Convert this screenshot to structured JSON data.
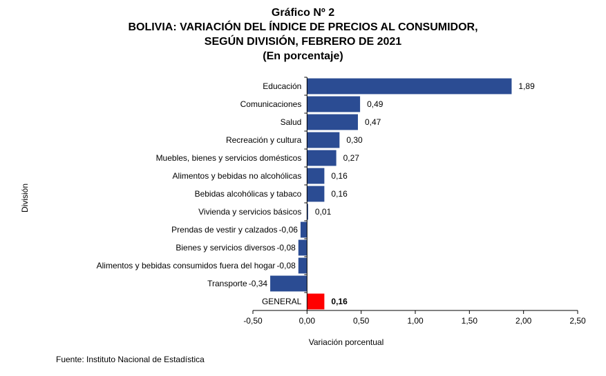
{
  "titles": {
    "line1": "Gráfico Nº 2",
    "line2": "BOLIVIA: VARIACIÓN DEL ÍNDICE DE PRECIOS AL CONSUMIDOR,",
    "line3": "SEGÚN DIVISIÓN, FEBRERO DE 2021",
    "line4": "(En porcentaje)"
  },
  "source": "Fuente: Instituto Nacional de Estadística",
  "chart_data": {
    "type": "bar",
    "orientation": "horizontal",
    "xlabel": "Variación porcentual",
    "ylabel": "División",
    "xlim": [
      -0.5,
      2.5
    ],
    "x_ticks": [
      -0.5,
      0.0,
      0.5,
      1.0,
      1.5,
      2.0,
      2.5
    ],
    "x_tick_labels": [
      "-0,50",
      "0,00",
      "0,50",
      "1,00",
      "1,50",
      "2,00",
      "2,50"
    ],
    "grid": false,
    "categories": [
      "Educación",
      "Comunicaciones",
      "Salud",
      "Recreación y cultura",
      "Muebles, bienes y servicios domésticos",
      "Alimentos y bebidas no alcohólicas",
      "Bebidas alcohólicas y tabaco",
      "Vivienda y servicios básicos",
      "Prendas de vestir y calzados",
      "Bienes y servicios diversos",
      "Alimentos y bebidas consumidos fuera del hogar",
      "Transporte",
      "GENERAL"
    ],
    "values": [
      1.89,
      0.49,
      0.47,
      0.3,
      0.27,
      0.16,
      0.16,
      0.01,
      -0.06,
      -0.08,
      -0.08,
      -0.34,
      0.16
    ],
    "value_labels": [
      "1,89",
      "0,49",
      "0,47",
      "0,30",
      "0,27",
      "0,16",
      "0,16",
      "0,01",
      "-0,06",
      "-0,08",
      "-0,08",
      "-0,34",
      "0,16"
    ],
    "highlight_index": 12,
    "colors": {
      "bar": "#2B4C93",
      "highlight": "#FF0000"
    }
  }
}
